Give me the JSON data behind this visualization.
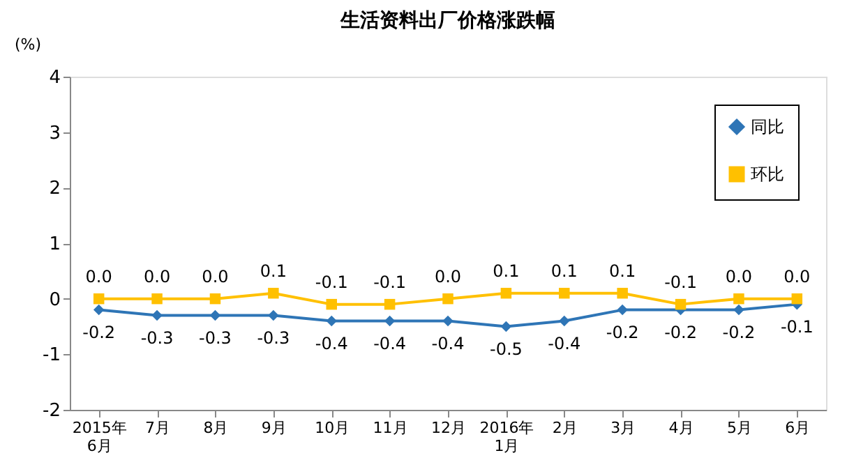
{
  "chart_data": {
    "type": "line",
    "title": "生活资料出厂价格涨跌幅",
    "ylabel": "(%)",
    "categories": [
      "2015年\n6月",
      "7月",
      "8月",
      "9月",
      "10月",
      "11月",
      "12月",
      "2016年\n1月",
      "2月",
      "3月",
      "4月",
      "5月",
      "6月"
    ],
    "series": [
      {
        "name": "同比",
        "color": "#2e75b6",
        "marker": "diamond",
        "values": [
          -0.2,
          -0.3,
          -0.3,
          -0.3,
          -0.4,
          -0.4,
          -0.4,
          -0.5,
          -0.4,
          -0.2,
          -0.2,
          -0.2,
          -0.1
        ],
        "value_labels": [
          "-0.2",
          "-0.3",
          "-0.3",
          "-0.3",
          "-0.4",
          "-0.4",
          "-0.4",
          "-0.5",
          "-0.4",
          "-0.2",
          "-0.2",
          "-0.2",
          "-0.1"
        ]
      },
      {
        "name": "环比",
        "color": "#ffc000",
        "marker": "square",
        "values": [
          0.0,
          0.0,
          0.0,
          0.1,
          -0.1,
          -0.1,
          0.0,
          0.1,
          0.1,
          0.1,
          -0.1,
          0.0,
          0.0
        ],
        "value_labels": [
          "0.0",
          "0.0",
          "0.0",
          "0.1",
          "-0.1",
          "-0.1",
          "0.0",
          "0.1",
          "0.1",
          "0.1",
          "-0.1",
          "0.0",
          "0.0"
        ]
      }
    ],
    "ylim": [
      -2,
      4
    ],
    "yticks": [
      -2,
      -1,
      0,
      1,
      2,
      3,
      4
    ],
    "grid": false,
    "legend": "top right"
  }
}
